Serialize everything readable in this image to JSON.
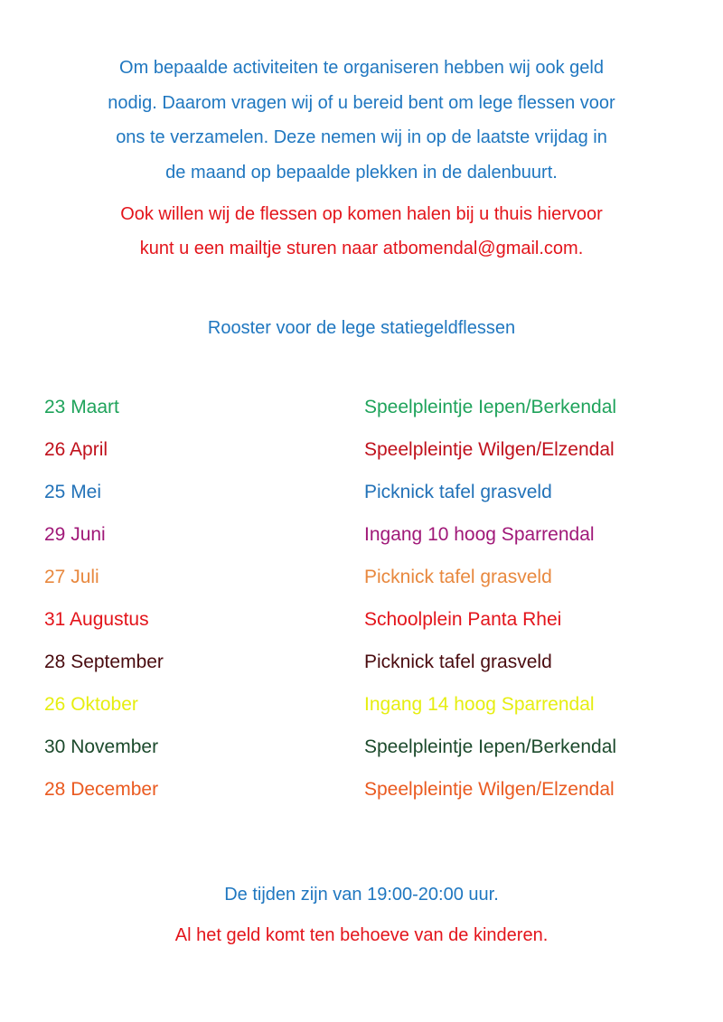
{
  "intro": [
    "Om bepaalde activiteiten te organiseren hebben wij ook geld",
    "nodig. Daarom vragen wij of u bereid bent om lege flessen voor",
    "ons te verzamelen. Deze nemen wij in op de laatste vrijdag in",
    "de maand op bepaalde plekken in de dalenbuurt."
  ],
  "pickup": [
    "Ook willen wij de flessen op komen halen bij u thuis hiervoor",
    "kunt u een mailtje sturen naar  atbomendal@gmail.com."
  ],
  "schedule_title": "Rooster voor de lege statiegeldflessen",
  "schedule": [
    {
      "date": "23 Maart",
      "location": "Speelpleintje Iepen/Berkendal",
      "color": "#1fa35b"
    },
    {
      "date": "26 April",
      "location": "Speelpleintje Wilgen/Elzendal",
      "color": "#c0111c"
    },
    {
      "date": "25 Mei",
      "location": "Picknick tafel grasveld",
      "color": "#2272b8"
    },
    {
      "date": "29 Juni",
      "location": "Ingang 10 hoog Sparrendal",
      "color": "#a01878"
    },
    {
      "date": "27 Juli",
      "location": "Picknick tafel grasveld",
      "color": "#e8883e"
    },
    {
      "date": "31 Augustus",
      "location": "Schoolplein Panta Rhei",
      "color": "#e3141b"
    },
    {
      "date": "28 September",
      "location": "Picknick tafel grasveld",
      "color": "#4a0c10"
    },
    {
      "date": "26 Oktober",
      "location": "Ingang 14 hoog Sparrendal",
      "color": "#e6ee10"
    },
    {
      "date": "30 November",
      "location": "Speelpleintje Iepen/Berkendal",
      "color": "#1c4a2c"
    },
    {
      "date": "28 December",
      "location": "Speelpleintje Wilgen/Elzendal",
      "color": "#ea5a20"
    }
  ],
  "times": "De tijden zijn van 19:00-20:00 uur.",
  "footer": "Al het geld komt ten behoeve van de kinderen."
}
